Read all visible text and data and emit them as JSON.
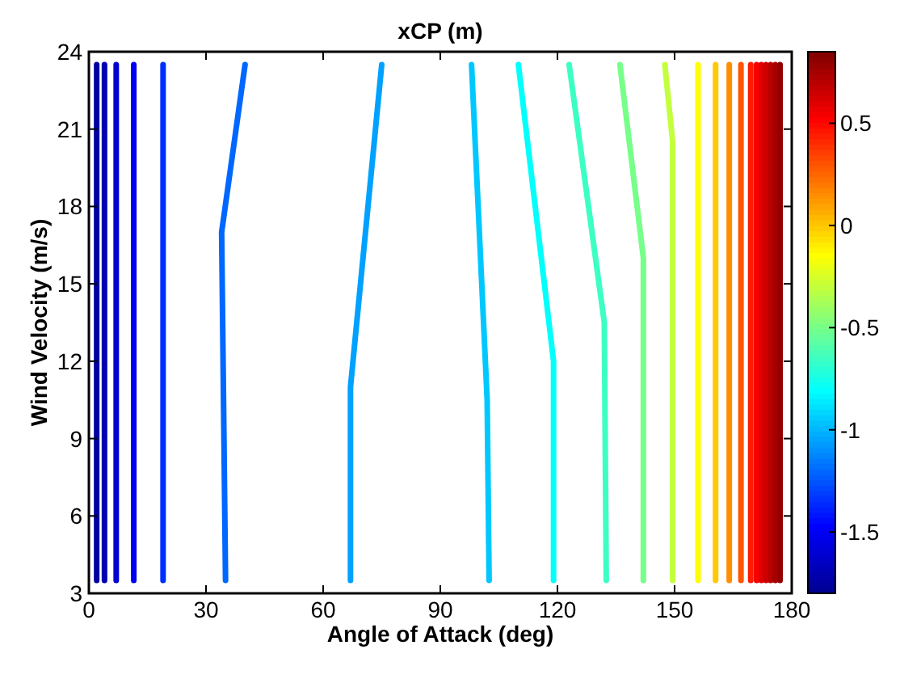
{
  "chart_data": {
    "type": "line",
    "title": "xCP (m)",
    "xlabel": "Angle of Attack (deg)",
    "ylabel": "Wind Velocity (m/s)",
    "xlim": [
      0,
      180
    ],
    "xticks": [
      0,
      30,
      60,
      90,
      120,
      150,
      180
    ],
    "ylim": [
      3,
      24
    ],
    "yticks": [
      3,
      6,
      9,
      12,
      15,
      18,
      21,
      24
    ],
    "clim": [
      -1.8,
      0.85
    ],
    "cticks": [
      -1.5,
      -1,
      -0.5,
      0,
      0.5
    ],
    "marker": "none",
    "line_style": "solid",
    "series": [
      {
        "x": [
          2,
          2
        ],
        "values": [
          3.5,
          23.5
        ],
        "color": "#0000a0"
      },
      {
        "x": [
          4,
          4
        ],
        "values": [
          3.5,
          23.5
        ],
        "color": "#0000b1"
      },
      {
        "x": [
          7,
          7
        ],
        "values": [
          3.5,
          23.5
        ],
        "color": "#0000d3"
      },
      {
        "x": [
          11.5,
          11.5
        ],
        "values": [
          3.5,
          23.5
        ],
        "color": "#0000f4"
      },
      {
        "x": [
          19,
          19
        ],
        "values": [
          3.5,
          23.5
        ],
        "color": "#002eff"
      },
      {
        "x": [
          35,
          34,
          40
        ],
        "values": [
          3.5,
          17,
          23.5
        ],
        "color": "#0067ff"
      },
      {
        "x": [
          67,
          67,
          75
        ],
        "values": [
          3.5,
          11,
          23.5
        ],
        "color": "#00a1ff"
      },
      {
        "x": [
          102.5,
          102,
          98
        ],
        "values": [
          3.5,
          10.5,
          23.5
        ],
        "color": "#00c8ff"
      },
      {
        "x": [
          119,
          119,
          110
        ],
        "values": [
          3.5,
          12,
          23.5
        ],
        "color": "#03fffc"
      },
      {
        "x": [
          132.5,
          132,
          123
        ],
        "values": [
          3.5,
          13.5,
          23.5
        ],
        "color": "#3cffc3"
      },
      {
        "x": [
          142,
          142,
          136
        ],
        "values": [
          3.5,
          16,
          23.5
        ],
        "color": "#76ff89"
      },
      {
        "x": [
          149.5,
          149.5,
          147.5
        ],
        "values": [
          3.5,
          20.5,
          23.5
        ],
        "color": "#c3ff3c"
      },
      {
        "x": [
          156,
          156
        ],
        "values": [
          3.5,
          23.5
        ],
        "color": "#fcff03"
      },
      {
        "x": [
          160.5,
          160.5
        ],
        "values": [
          3.5,
          23.5
        ],
        "color": "#ffc800"
      },
      {
        "x": [
          164,
          164
        ],
        "values": [
          3.5,
          23.5
        ],
        "color": "#ff8e00"
      },
      {
        "x": [
          167,
          167
        ],
        "values": [
          3.5,
          23.5
        ],
        "color": "#ff5500"
      },
      {
        "x": [
          169.5,
          169.5
        ],
        "values": [
          3.5,
          23.5
        ],
        "color": "#ff1b00"
      },
      {
        "x": [
          171,
          171
        ],
        "values": [
          3.5,
          23.5
        ],
        "color": "#f90000"
      },
      {
        "x": [
          172.2,
          172.2
        ],
        "values": [
          3.5,
          23.5
        ],
        "color": "#e00000"
      },
      {
        "x": [
          173.4,
          173.4
        ],
        "values": [
          3.5,
          23.5
        ],
        "color": "#cc0000"
      },
      {
        "x": [
          174.6,
          174.6
        ],
        "values": [
          3.5,
          23.5
        ],
        "color": "#ba0000"
      },
      {
        "x": [
          175.8,
          175.8
        ],
        "values": [
          3.5,
          23.5
        ],
        "color": "#a60000"
      },
      {
        "x": [
          177,
          177
        ],
        "values": [
          3.5,
          23.5
        ],
        "color": "#930000"
      }
    ]
  }
}
